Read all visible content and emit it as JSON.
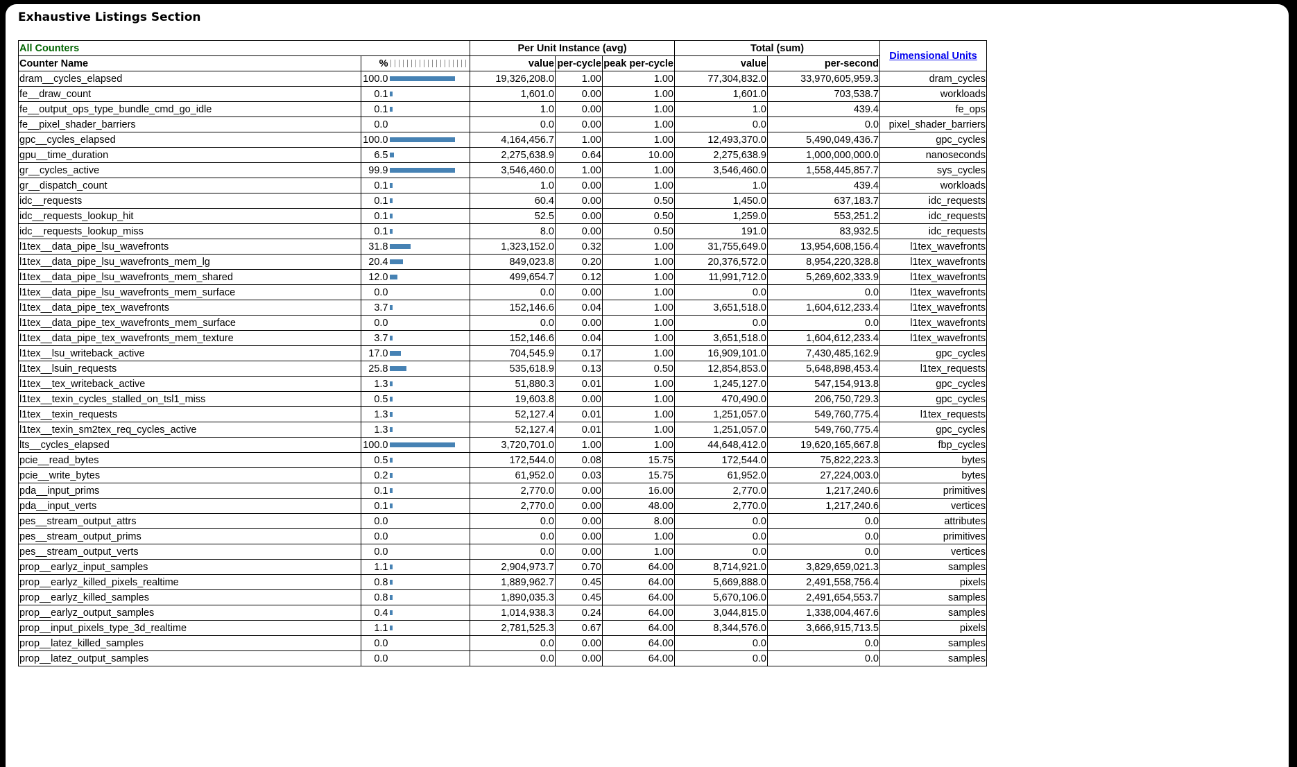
{
  "section_title": "Exhaustive Listings Section",
  "header": {
    "group_label": "All Counters",
    "per_unit_label": "Per Unit Instance (avg)",
    "total_label": "Total (sum)",
    "dim_units_label": "Dimensional Units",
    "counter_name": "Counter Name",
    "pct": "%",
    "value": "value",
    "per_cycle": "per-cycle",
    "peak_per_cycle": "peak per-cycle",
    "total_value": "value",
    "per_second": "per-second"
  },
  "colors": {
    "bar": "#4682b4",
    "group_label": "#006400",
    "link": "#0000ee"
  },
  "rows": [
    {
      "name": "dram__cycles_elapsed",
      "pct": "100.0",
      "pct_value": 100.0,
      "value": "19,326,208.0",
      "per_cycle": "1.00",
      "peak": "1.00",
      "total": "77,304,832.0",
      "per_second": "33,970,605,959.3",
      "unit": "dram_cycles"
    },
    {
      "name": "fe__draw_count",
      "pct": "0.1",
      "pct_value": 0.1,
      "value": "1,601.0",
      "per_cycle": "0.00",
      "peak": "1.00",
      "total": "1,601.0",
      "per_second": "703,538.7",
      "unit": "workloads"
    },
    {
      "name": "fe__output_ops_type_bundle_cmd_go_idle",
      "pct": "0.1",
      "pct_value": 0.1,
      "value": "1.0",
      "per_cycle": "0.00",
      "peak": "1.00",
      "total": "1.0",
      "per_second": "439.4",
      "unit": "fe_ops"
    },
    {
      "name": "fe__pixel_shader_barriers",
      "pct": "0.0",
      "pct_value": 0.0,
      "value": "0.0",
      "per_cycle": "0.00",
      "peak": "1.00",
      "total": "0.0",
      "per_second": "0.0",
      "unit": "pixel_shader_barriers"
    },
    {
      "name": "gpc__cycles_elapsed",
      "pct": "100.0",
      "pct_value": 100.0,
      "value": "4,164,456.7",
      "per_cycle": "1.00",
      "peak": "1.00",
      "total": "12,493,370.0",
      "per_second": "5,490,049,436.7",
      "unit": "gpc_cycles"
    },
    {
      "name": "gpu__time_duration",
      "pct": "6.5",
      "pct_value": 6.5,
      "value": "2,275,638.9",
      "per_cycle": "0.64",
      "peak": "10.00",
      "total": "2,275,638.9",
      "per_second": "1,000,000,000.0",
      "unit": "nanoseconds"
    },
    {
      "name": "gr__cycles_active",
      "pct": "99.9",
      "pct_value": 99.9,
      "value": "3,546,460.0",
      "per_cycle": "1.00",
      "peak": "1.00",
      "total": "3,546,460.0",
      "per_second": "1,558,445,857.7",
      "unit": "sys_cycles"
    },
    {
      "name": "gr__dispatch_count",
      "pct": "0.1",
      "pct_value": 0.1,
      "value": "1.0",
      "per_cycle": "0.00",
      "peak": "1.00",
      "total": "1.0",
      "per_second": "439.4",
      "unit": "workloads"
    },
    {
      "name": "idc__requests",
      "pct": "0.1",
      "pct_value": 0.1,
      "value": "60.4",
      "per_cycle": "0.00",
      "peak": "0.50",
      "total": "1,450.0",
      "per_second": "637,183.7",
      "unit": "idc_requests"
    },
    {
      "name": "idc__requests_lookup_hit",
      "pct": "0.1",
      "pct_value": 0.1,
      "value": "52.5",
      "per_cycle": "0.00",
      "peak": "0.50",
      "total": "1,259.0",
      "per_second": "553,251.2",
      "unit": "idc_requests"
    },
    {
      "name": "idc__requests_lookup_miss",
      "pct": "0.1",
      "pct_value": 0.1,
      "value": "8.0",
      "per_cycle": "0.00",
      "peak": "0.50",
      "total": "191.0",
      "per_second": "83,932.5",
      "unit": "idc_requests"
    },
    {
      "name": "l1tex__data_pipe_lsu_wavefronts",
      "pct": "31.8",
      "pct_value": 31.8,
      "value": "1,323,152.0",
      "per_cycle": "0.32",
      "peak": "1.00",
      "total": "31,755,649.0",
      "per_second": "13,954,608,156.4",
      "unit": "l1tex_wavefronts"
    },
    {
      "name": "l1tex__data_pipe_lsu_wavefronts_mem_lg",
      "pct": "20.4",
      "pct_value": 20.4,
      "value": "849,023.8",
      "per_cycle": "0.20",
      "peak": "1.00",
      "total": "20,376,572.0",
      "per_second": "8,954,220,328.8",
      "unit": "l1tex_wavefronts"
    },
    {
      "name": "l1tex__data_pipe_lsu_wavefronts_mem_shared",
      "pct": "12.0",
      "pct_value": 12.0,
      "value": "499,654.7",
      "per_cycle": "0.12",
      "peak": "1.00",
      "total": "11,991,712.0",
      "per_second": "5,269,602,333.9",
      "unit": "l1tex_wavefronts"
    },
    {
      "name": "l1tex__data_pipe_lsu_wavefronts_mem_surface",
      "pct": "0.0",
      "pct_value": 0.0,
      "value": "0.0",
      "per_cycle": "0.00",
      "peak": "1.00",
      "total": "0.0",
      "per_second": "0.0",
      "unit": "l1tex_wavefronts"
    },
    {
      "name": "l1tex__data_pipe_tex_wavefronts",
      "pct": "3.7",
      "pct_value": 3.7,
      "value": "152,146.6",
      "per_cycle": "0.04",
      "peak": "1.00",
      "total": "3,651,518.0",
      "per_second": "1,604,612,233.4",
      "unit": "l1tex_wavefronts"
    },
    {
      "name": "l1tex__data_pipe_tex_wavefronts_mem_surface",
      "pct": "0.0",
      "pct_value": 0.0,
      "value": "0.0",
      "per_cycle": "0.00",
      "peak": "1.00",
      "total": "0.0",
      "per_second": "0.0",
      "unit": "l1tex_wavefronts"
    },
    {
      "name": "l1tex__data_pipe_tex_wavefronts_mem_texture",
      "pct": "3.7",
      "pct_value": 3.7,
      "value": "152,146.6",
      "per_cycle": "0.04",
      "peak": "1.00",
      "total": "3,651,518.0",
      "per_second": "1,604,612,233.4",
      "unit": "l1tex_wavefronts"
    },
    {
      "name": "l1tex__lsu_writeback_active",
      "pct": "17.0",
      "pct_value": 17.0,
      "value": "704,545.9",
      "per_cycle": "0.17",
      "peak": "1.00",
      "total": "16,909,101.0",
      "per_second": "7,430,485,162.9",
      "unit": "gpc_cycles"
    },
    {
      "name": "l1tex__lsuin_requests",
      "pct": "25.8",
      "pct_value": 25.8,
      "value": "535,618.9",
      "per_cycle": "0.13",
      "peak": "0.50",
      "total": "12,854,853.0",
      "per_second": "5,648,898,453.4",
      "unit": "l1tex_requests"
    },
    {
      "name": "l1tex__tex_writeback_active",
      "pct": "1.3",
      "pct_value": 1.3,
      "value": "51,880.3",
      "per_cycle": "0.01",
      "peak": "1.00",
      "total": "1,245,127.0",
      "per_second": "547,154,913.8",
      "unit": "gpc_cycles"
    },
    {
      "name": "l1tex__texin_cycles_stalled_on_tsl1_miss",
      "pct": "0.5",
      "pct_value": 0.5,
      "value": "19,603.8",
      "per_cycle": "0.00",
      "peak": "1.00",
      "total": "470,490.0",
      "per_second": "206,750,729.3",
      "unit": "gpc_cycles"
    },
    {
      "name": "l1tex__texin_requests",
      "pct": "1.3",
      "pct_value": 1.3,
      "value": "52,127.4",
      "per_cycle": "0.01",
      "peak": "1.00",
      "total": "1,251,057.0",
      "per_second": "549,760,775.4",
      "unit": "l1tex_requests"
    },
    {
      "name": "l1tex__texin_sm2tex_req_cycles_active",
      "pct": "1.3",
      "pct_value": 1.3,
      "value": "52,127.4",
      "per_cycle": "0.01",
      "peak": "1.00",
      "total": "1,251,057.0",
      "per_second": "549,760,775.4",
      "unit": "gpc_cycles"
    },
    {
      "name": "lts__cycles_elapsed",
      "pct": "100.0",
      "pct_value": 100.0,
      "value": "3,720,701.0",
      "per_cycle": "1.00",
      "peak": "1.00",
      "total": "44,648,412.0",
      "per_second": "19,620,165,667.8",
      "unit": "fbp_cycles"
    },
    {
      "name": "pcie__read_bytes",
      "pct": "0.5",
      "pct_value": 0.5,
      "value": "172,544.0",
      "per_cycle": "0.08",
      "peak": "15.75",
      "total": "172,544.0",
      "per_second": "75,822,223.3",
      "unit": "bytes"
    },
    {
      "name": "pcie__write_bytes",
      "pct": "0.2",
      "pct_value": 0.2,
      "value": "61,952.0",
      "per_cycle": "0.03",
      "peak": "15.75",
      "total": "61,952.0",
      "per_second": "27,224,003.0",
      "unit": "bytes"
    },
    {
      "name": "pda__input_prims",
      "pct": "0.1",
      "pct_value": 0.1,
      "value": "2,770.0",
      "per_cycle": "0.00",
      "peak": "16.00",
      "total": "2,770.0",
      "per_second": "1,217,240.6",
      "unit": "primitives"
    },
    {
      "name": "pda__input_verts",
      "pct": "0.1",
      "pct_value": 0.1,
      "value": "2,770.0",
      "per_cycle": "0.00",
      "peak": "48.00",
      "total": "2,770.0",
      "per_second": "1,217,240.6",
      "unit": "vertices"
    },
    {
      "name": "pes__stream_output_attrs",
      "pct": "0.0",
      "pct_value": 0.0,
      "value": "0.0",
      "per_cycle": "0.00",
      "peak": "8.00",
      "total": "0.0",
      "per_second": "0.0",
      "unit": "attributes"
    },
    {
      "name": "pes__stream_output_prims",
      "pct": "0.0",
      "pct_value": 0.0,
      "value": "0.0",
      "per_cycle": "0.00",
      "peak": "1.00",
      "total": "0.0",
      "per_second": "0.0",
      "unit": "primitives"
    },
    {
      "name": "pes__stream_output_verts",
      "pct": "0.0",
      "pct_value": 0.0,
      "value": "0.0",
      "per_cycle": "0.00",
      "peak": "1.00",
      "total": "0.0",
      "per_second": "0.0",
      "unit": "vertices"
    },
    {
      "name": "prop__earlyz_input_samples",
      "pct": "1.1",
      "pct_value": 1.1,
      "value": "2,904,973.7",
      "per_cycle": "0.70",
      "peak": "64.00",
      "total": "8,714,921.0",
      "per_second": "3,829,659,021.3",
      "unit": "samples"
    },
    {
      "name": "prop__earlyz_killed_pixels_realtime",
      "pct": "0.8",
      "pct_value": 0.8,
      "value": "1,889,962.7",
      "per_cycle": "0.45",
      "peak": "64.00",
      "total": "5,669,888.0",
      "per_second": "2,491,558,756.4",
      "unit": "pixels"
    },
    {
      "name": "prop__earlyz_killed_samples",
      "pct": "0.8",
      "pct_value": 0.8,
      "value": "1,890,035.3",
      "per_cycle": "0.45",
      "peak": "64.00",
      "total": "5,670,106.0",
      "per_second": "2,491,654,553.7",
      "unit": "samples"
    },
    {
      "name": "prop__earlyz_output_samples",
      "pct": "0.4",
      "pct_value": 0.4,
      "value": "1,014,938.3",
      "per_cycle": "0.24",
      "peak": "64.00",
      "total": "3,044,815.0",
      "per_second": "1,338,004,467.6",
      "unit": "samples"
    },
    {
      "name": "prop__input_pixels_type_3d_realtime",
      "pct": "1.1",
      "pct_value": 1.1,
      "value": "2,781,525.3",
      "per_cycle": "0.67",
      "peak": "64.00",
      "total": "8,344,576.0",
      "per_second": "3,666,915,713.5",
      "unit": "pixels"
    },
    {
      "name": "prop__latez_killed_samples",
      "pct": "0.0",
      "pct_value": 0.0,
      "value": "0.0",
      "per_cycle": "0.00",
      "peak": "64.00",
      "total": "0.0",
      "per_second": "0.0",
      "unit": "samples"
    },
    {
      "name": "prop__latez_output_samples",
      "pct": "0.0",
      "pct_value": 0.0,
      "value": "0.0",
      "per_cycle": "0.00",
      "peak": "64.00",
      "total": "0.0",
      "per_second": "0.0",
      "unit": "samples"
    }
  ]
}
